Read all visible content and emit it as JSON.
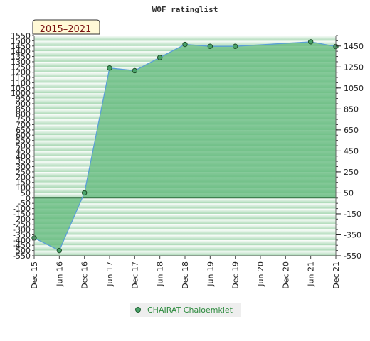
{
  "chart_data": {
    "type": "area",
    "title": "WOF ratinglist",
    "period_label": "2015–2021",
    "x_labels": [
      "Dec 15",
      "Jun 16",
      "Dec 16",
      "Jun 17",
      "Dec 17",
      "Jun 18",
      "Dec 18",
      "Jun 19",
      "Dec 19",
      "Jun 20",
      "Dec 20",
      "Jun 21",
      "Dec 21"
    ],
    "left_ticks": [
      "1550",
      "1500",
      "1450",
      "1400",
      "1350",
      "1300",
      "1250",
      "1200",
      "1150",
      "1100",
      "1050",
      "1000",
      "950",
      "900",
      "850",
      "800",
      "750",
      "700",
      "650",
      "600",
      "550",
      "500",
      "450",
      "400",
      "350",
      "300",
      "250",
      "200",
      "150",
      "100",
      "50",
      "0",
      "-50",
      "-100",
      "-150",
      "-200",
      "-250",
      "-300",
      "-350",
      "-400",
      "-450",
      "-500",
      "-550"
    ],
    "right_ticks": [
      "1450",
      "1250",
      "1050",
      "850",
      "650",
      "450",
      "250",
      "50",
      "-150",
      "-350",
      "-550"
    ],
    "ylim": [
      -550,
      1550
    ],
    "series": [
      {
        "name": "CHAIRAT Chaloemkiet",
        "color": "#2e8b3f",
        "points": [
          {
            "x": 0,
            "y": -380
          },
          {
            "x": 1,
            "y": -500
          },
          {
            "x": 2,
            "y": 50
          },
          {
            "x": 3,
            "y": 1240
          },
          {
            "x": 4,
            "y": 1215
          },
          {
            "x": 5,
            "y": 1340
          },
          {
            "x": 6,
            "y": 1465
          },
          {
            "x": 7,
            "y": 1447
          },
          {
            "x": 8,
            "y": 1447
          },
          {
            "x": 11,
            "y": 1490
          },
          {
            "x": 12,
            "y": 1445
          }
        ]
      }
    ],
    "colors": {
      "area_fill": "#5fb87a",
      "line": "#5a9fd6",
      "marker": "#4aa36a",
      "band_dark": "#a9d8b4",
      "band_light": "#ffffff",
      "period_bg": "#fff9d6"
    }
  }
}
